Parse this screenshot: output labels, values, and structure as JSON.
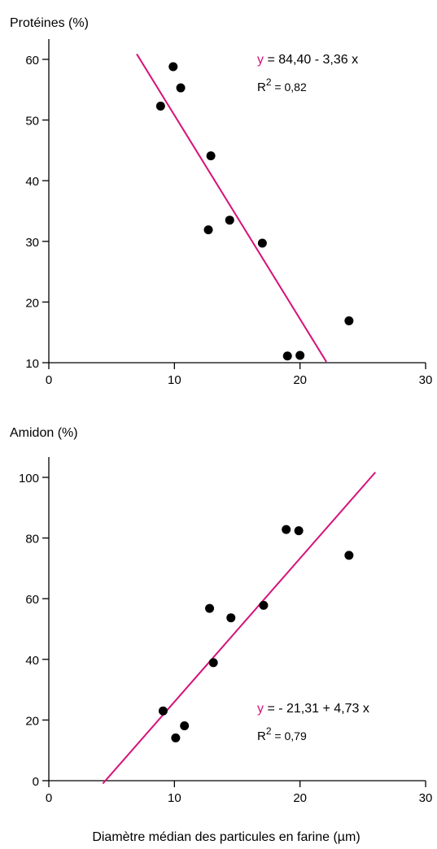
{
  "colors": {
    "regression_line": "#d6117a",
    "points": "#000000",
    "axes": "#000000"
  },
  "xaxis_label": "Diamètre médian des particules en farine (µm)",
  "chart_data": [
    {
      "type": "scatter",
      "ylabel": "Protéines  (%)",
      "xlim": [
        0,
        30
      ],
      "ylim": [
        10,
        60
      ],
      "xticks": [
        "0",
        "10",
        "20",
        "30"
      ],
      "yticks": [
        "10",
        "20",
        "30",
        "40",
        "50",
        "60"
      ],
      "x_tick_values": [
        0,
        10,
        20,
        30
      ],
      "y_tick_values": [
        10,
        20,
        30,
        40,
        50,
        60
      ],
      "points": [
        {
          "x": 8.9,
          "y": 52.3
        },
        {
          "x": 9.9,
          "y": 58.8
        },
        {
          "x": 10.5,
          "y": 55.3
        },
        {
          "x": 12.9,
          "y": 44.1
        },
        {
          "x": 12.7,
          "y": 31.9
        },
        {
          "x": 14.4,
          "y": 33.5
        },
        {
          "x": 17.0,
          "y": 29.7
        },
        {
          "x": 19.0,
          "y": 11.1
        },
        {
          "x": 20.0,
          "y": 11.2
        },
        {
          "x": 23.9,
          "y": 16.9
        }
      ],
      "regression": {
        "intercept": 84.4,
        "slope": -3.36,
        "x_range": [
          7.0,
          22.1
        ],
        "eq_y": "y",
        "eq_rest": " = 84,40 - 3,36 x",
        "r2_label": "R",
        "r2_sup": "2",
        "r2_value": " = 0,82"
      }
    },
    {
      "type": "scatter",
      "ylabel": "Amidon (%)",
      "xlim": [
        0,
        30
      ],
      "ylim": [
        0,
        100
      ],
      "xticks": [
        "0",
        "10",
        "20",
        "30"
      ],
      "yticks": [
        "0",
        "20",
        "40",
        "60",
        "80",
        "100"
      ],
      "x_tick_values": [
        0,
        10,
        20,
        30
      ],
      "y_tick_values": [
        0,
        20,
        40,
        60,
        80,
        100
      ],
      "points": [
        {
          "x": 9.1,
          "y": 23.0
        },
        {
          "x": 10.1,
          "y": 14.1
        },
        {
          "x": 10.8,
          "y": 18.1
        },
        {
          "x": 12.8,
          "y": 56.8
        },
        {
          "x": 13.1,
          "y": 38.9
        },
        {
          "x": 14.5,
          "y": 53.7
        },
        {
          "x": 17.1,
          "y": 57.8
        },
        {
          "x": 18.9,
          "y": 82.8
        },
        {
          "x": 19.9,
          "y": 82.4
        },
        {
          "x": 23.9,
          "y": 74.3
        }
      ],
      "regression": {
        "intercept": -21.31,
        "slope": 4.73,
        "x_range": [
          4.3,
          26.0
        ],
        "eq_y": "y",
        "eq_rest": " = - 21,31 + 4,73 x",
        "r2_label": "R",
        "r2_sup": "2",
        "r2_value": " = 0,79"
      }
    }
  ]
}
